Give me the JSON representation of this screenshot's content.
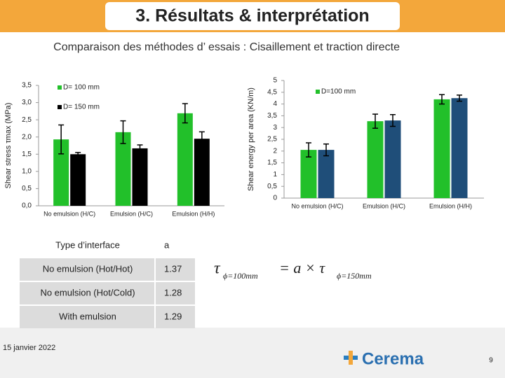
{
  "title": "3. Résultats & interprétation",
  "subtitle": "Comparaison des méthodes d’ essais : Cisaillement et traction directe",
  "chart_data": [
    {
      "type": "bar",
      "y_label": "Shear stress τmax (MPa)",
      "categories": [
        "No emulsion (H/C)",
        "Emulsion (H/C)",
        "Emulsion (H/H)"
      ],
      "series": [
        {
          "name": "D= 100 mm",
          "color": "#22c02a",
          "values": [
            1.93,
            2.14,
            2.69
          ],
          "errors": [
            0.42,
            0.33,
            0.28
          ]
        },
        {
          "name": "D= 150 mm",
          "color": "#000000",
          "values": [
            1.5,
            1.67,
            1.95
          ],
          "errors": [
            0.05,
            0.1,
            0.2
          ]
        }
      ],
      "ylim": [
        0,
        3.5
      ],
      "yticks": [
        {
          "value": 0,
          "label": "0,0"
        },
        {
          "value": 0.5,
          "label": "0,5"
        },
        {
          "value": 1,
          "label": "1,0"
        },
        {
          "value": 1.5,
          "label": "1,5"
        },
        {
          "value": 2,
          "label": "2,0"
        },
        {
          "value": 2.5,
          "label": "2,5"
        },
        {
          "value": 3,
          "label": "3,0"
        },
        {
          "value": 3.5,
          "label": "3,5"
        }
      ]
    },
    {
      "type": "bar",
      "y_label": "Shear energy per area (KN/m)",
      "categories": [
        "No emulsion (H/C)",
        "Emulsion (H/C)",
        "Emulsion (H/H)"
      ],
      "series": [
        {
          "name": "D=100 mm",
          "color": "#22c02a",
          "values": [
            2.05,
            3.27,
            4.2
          ],
          "errors": [
            0.3,
            0.3,
            0.2
          ]
        },
        {
          "color": "#1f4e79",
          "values": [
            2.05,
            3.3,
            4.25
          ],
          "errors": [
            0.25,
            0.25,
            0.13
          ]
        }
      ],
      "ylim": [
        0,
        5
      ],
      "yticks": [
        0,
        {
          "value": 0.5,
          "label": "0,5"
        },
        1,
        {
          "value": 1.5,
          "label": "1,5"
        },
        2,
        {
          "value": 2.5,
          "label": "2,5"
        },
        3,
        {
          "value": 3.5,
          "label": "3,5"
        },
        4,
        {
          "value": 4.5,
          "label": "4,5"
        },
        5
      ]
    }
  ],
  "table": {
    "header": [
      "Type d’interface",
      "a"
    ],
    "rows": [
      [
        "No emulsion (Hot/Hot)",
        "1.37"
      ],
      [
        "No emulsion (Hot/Cold)",
        "1.28"
      ],
      [
        "With emulsion",
        "1.29"
      ]
    ]
  },
  "equation": {
    "lhs": "τ",
    "lhs_sub": "ϕ=100mm",
    "middle": "= a × τ",
    "rhs_sub": "ϕ=150mm"
  },
  "date": "15 janvier 2022",
  "logo": "Cerema",
  "page_number": "9"
}
